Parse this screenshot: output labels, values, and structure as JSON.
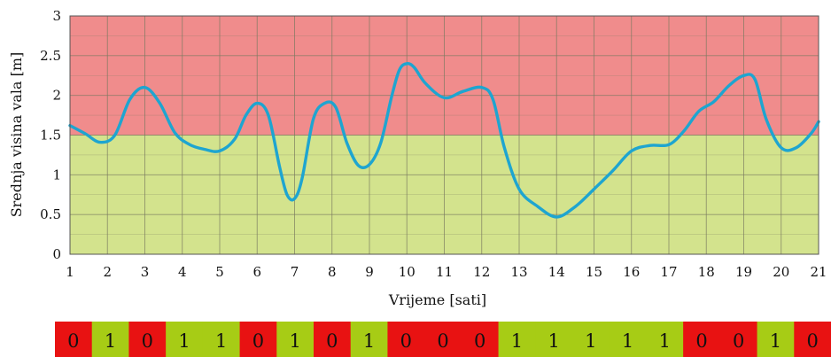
{
  "chart_data": {
    "type": "line",
    "xlabel": "Vrijeme [sati]",
    "ylabel": "Srednja visina vala [m]",
    "xlim": [
      1,
      21
    ],
    "ylim": [
      0,
      3
    ],
    "x_ticks": [
      "1",
      "2",
      "3",
      "4",
      "5",
      "6",
      "7",
      "8",
      "9",
      "10",
      "11",
      "12",
      "13",
      "14",
      "15",
      "16",
      "17",
      "18",
      "19",
      "20",
      "21"
    ],
    "y_ticks": [
      "0",
      "0.5",
      "1",
      "1.5",
      "2",
      "2.5",
      "3"
    ],
    "threshold": 1.5,
    "grid": true,
    "colors": {
      "above": "#f08c8c",
      "below": "#d3e38d",
      "line": "#1ea5d0",
      "grid": "#7a7a60"
    },
    "series": [
      {
        "x": [
          1,
          1.4,
          1.8,
          2.2,
          2.6,
          3,
          3.4,
          3.8,
          4.2,
          4.6,
          5,
          5.4,
          5.7,
          6,
          6.3,
          6.6,
          6.8,
          7,
          7.2,
          7.5,
          7.8,
          8.1,
          8.4,
          8.7,
          9,
          9.3,
          9.6,
          9.8,
          10,
          10.2,
          10.5,
          11,
          11.5,
          12,
          12.3,
          12.6,
          13,
          13.5,
          14,
          14.5,
          15,
          15.5,
          16,
          16.5,
          17,
          17.4,
          17.8,
          18.2,
          18.6,
          19,
          19.3,
          19.6,
          20,
          20.4,
          20.8,
          21
        ],
        "y": [
          1.62,
          1.52,
          1.41,
          1.5,
          1.95,
          2.1,
          1.9,
          1.53,
          1.38,
          1.32,
          1.3,
          1.45,
          1.75,
          1.9,
          1.75,
          1.1,
          0.75,
          0.7,
          0.95,
          1.7,
          1.9,
          1.85,
          1.4,
          1.12,
          1.13,
          1.4,
          2.0,
          2.32,
          2.4,
          2.35,
          2.15,
          1.97,
          2.05,
          2.1,
          1.95,
          1.35,
          0.82,
          0.6,
          0.47,
          0.6,
          0.82,
          1.05,
          1.3,
          1.37,
          1.38,
          1.55,
          1.8,
          1.92,
          2.12,
          2.25,
          2.2,
          1.7,
          1.34,
          1.34,
          1.52,
          1.67
        ]
      }
    ]
  },
  "code_strip": {
    "values": [
      "0",
      "1",
      "0",
      "1",
      "1",
      "0",
      "1",
      "0",
      "1",
      "0",
      "0",
      "0",
      "1",
      "1",
      "1",
      "1",
      "1",
      "0",
      "0",
      "1",
      "0"
    ],
    "colors": {
      "0": "#e81212",
      "1": "#a7cc15"
    }
  }
}
